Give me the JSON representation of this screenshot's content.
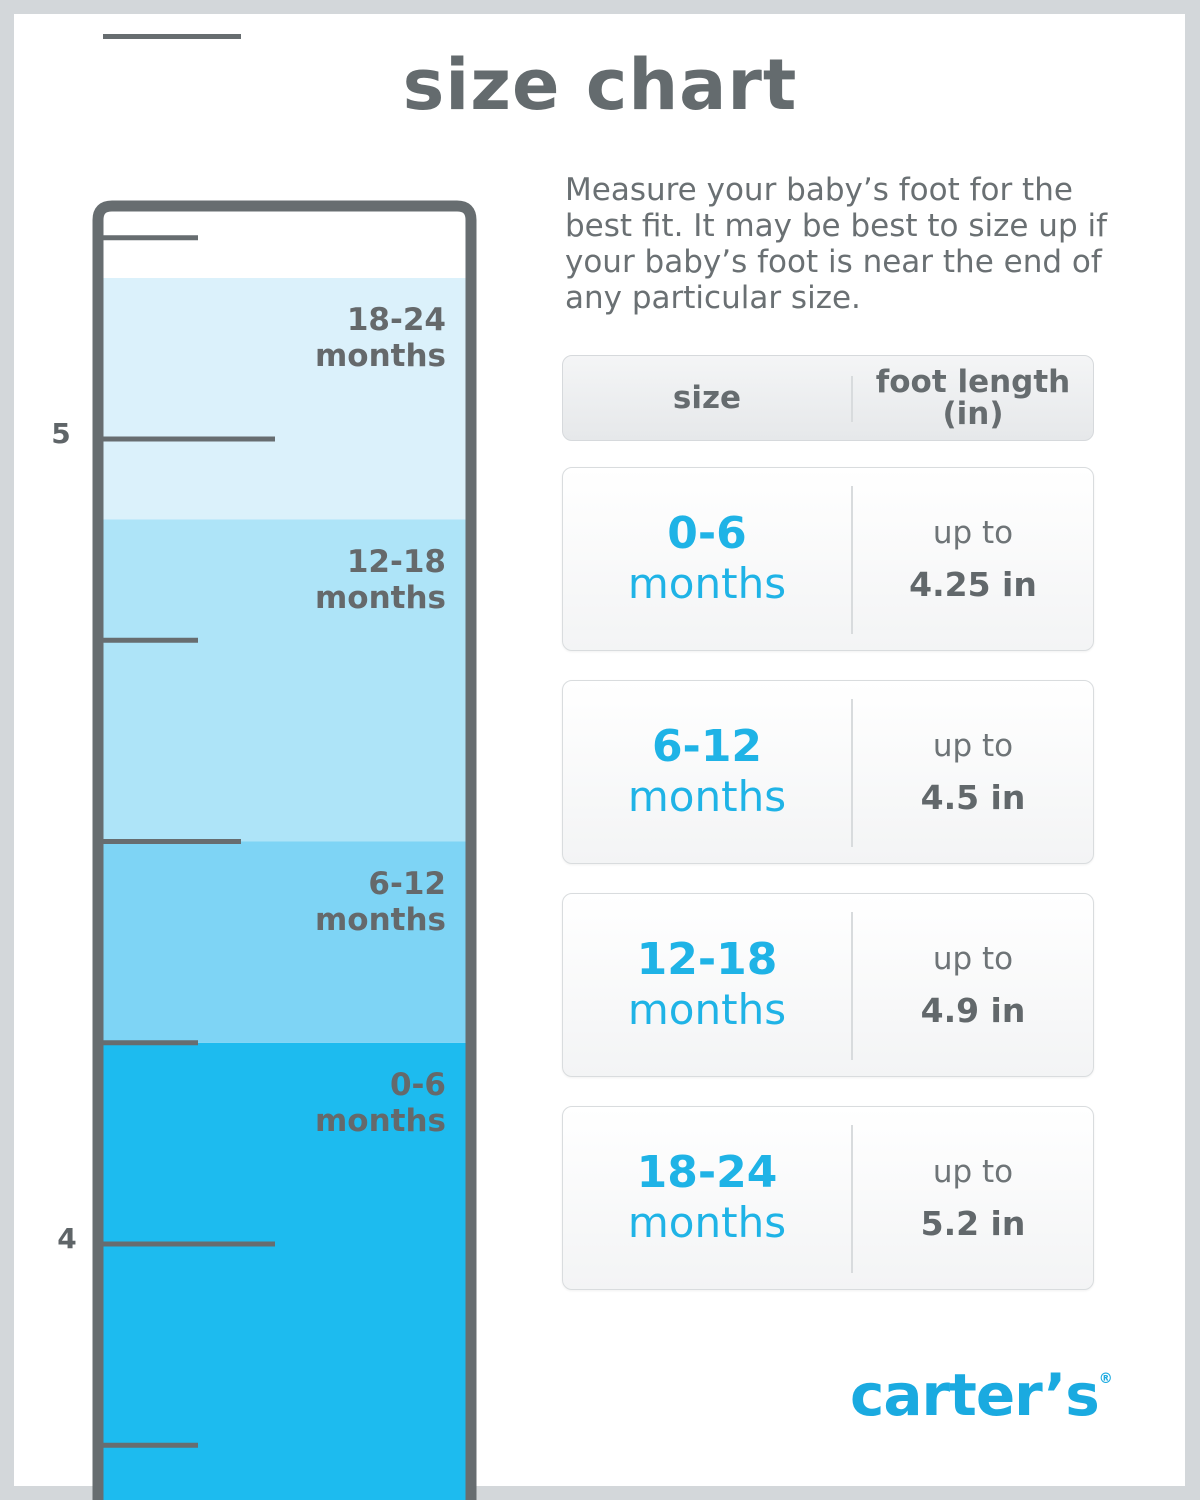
{
  "title": "size chart",
  "intro": "Measure your baby’s foot for the best fit. It may be best to size up if your baby’s foot is near the end of any particular size.",
  "table": {
    "header": {
      "size": "size",
      "length_line1": "foot length",
      "length_line2": "(in)"
    },
    "rows": [
      {
        "range": "0-6",
        "unit": "months",
        "prefix": "up to",
        "value": "4.25 in"
      },
      {
        "range": "6-12",
        "unit": "months",
        "prefix": "up to",
        "value": "4.5 in"
      },
      {
        "range": "12-18",
        "unit": "months",
        "prefix": "up to",
        "value": "4.9 in"
      },
      {
        "range": "18-24",
        "unit": "months",
        "prefix": "up to",
        "value": "5.2 in"
      }
    ]
  },
  "brand": {
    "name": "carter’s",
    "mark": "®"
  },
  "chart_data": {
    "type": "bar",
    "orientation": "vertical-ruler",
    "ylim": [
      3.72,
      5.5
    ],
    "y_ticks": [
      4,
      5
    ],
    "minor_step": 0.25,
    "bands": [
      {
        "range": "0-6",
        "unit": "months",
        "from": 3.72,
        "to": 4.25,
        "color": "#1dbbef"
      },
      {
        "range": "6-12",
        "unit": "months",
        "from": 4.25,
        "to": 4.5,
        "color": "#7ed4f5"
      },
      {
        "range": "12-18",
        "unit": "months",
        "from": 4.5,
        "to": 4.9,
        "color": "#aee4f8"
      },
      {
        "range": "18-24",
        "unit": "months",
        "from": 4.9,
        "to": 5.2,
        "color": "#dbf1fb"
      }
    ],
    "frame_color": "#676d70"
  }
}
